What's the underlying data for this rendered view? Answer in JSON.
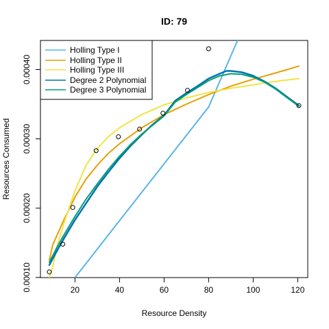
{
  "chart_data": {
    "type": "scatter",
    "title": "ID: 79",
    "xlabel": "Resource Density",
    "ylabel": "Resources Consumed",
    "xlim": [
      4.5,
      124.5
    ],
    "ylim": [
      9.98e-05,
      0.000442
    ],
    "x_ticks": [
      20,
      40,
      60,
      80,
      100,
      120
    ],
    "y_ticks": [
      0.0001,
      0.0002,
      0.0003,
      0.0004
    ],
    "x_tick_labels": [
      "20",
      "40",
      "60",
      "80",
      "100",
      "120"
    ],
    "y_tick_labels": [
      "0.00010",
      "0.00020",
      "0.00030",
      "0.00040"
    ],
    "grid": false,
    "legend_position": "top-left",
    "points": [
      {
        "x": 8.5,
        "y": 0.000108
      },
      {
        "x": 14.5,
        "y": 0.000148
      },
      {
        "x": 19.0,
        "y": 0.000201
      },
      {
        "x": 29.5,
        "y": 0.000283
      },
      {
        "x": 39.5,
        "y": 0.000303
      },
      {
        "x": 49.0,
        "y": 0.000314
      },
      {
        "x": 59.5,
        "y": 0.000337
      },
      {
        "x": 70.5,
        "y": 0.00037
      },
      {
        "x": 80.0,
        "y": 0.00043
      },
      {
        "x": 120.5,
        "y": 0.000348
      }
    ],
    "series": [
      {
        "name": "Holling Type I",
        "color": "#56B4E9",
        "x": [
          20,
          40,
          60,
          80,
          93
        ],
        "y": [
          9.98e-05,
          0.000182,
          0.000264,
          0.000346,
          0.000442
        ]
      },
      {
        "name": "Holling Type II",
        "color": "#E69F00",
        "x": [
          8.5,
          10,
          15,
          20,
          25,
          30,
          35,
          40,
          50,
          60,
          70,
          80,
          90,
          100,
          110,
          120.5
        ],
        "y": [
          0.000125,
          0.000147,
          0.000183,
          0.000216,
          0.000242,
          0.000262,
          0.000279,
          0.000293,
          0.000316,
          0.000335,
          0.00035,
          0.000364,
          0.000376,
          0.000386,
          0.000395,
          0.000405
        ]
      },
      {
        "name": "Holling Type III",
        "color": "#F0E442",
        "x": [
          8.5,
          10,
          12,
          15,
          20,
          25,
          30,
          35,
          40,
          50,
          60,
          70,
          80,
          90,
          100,
          110,
          120.5
        ],
        "y": [
          9.98e-05,
          0.000115,
          0.000145,
          0.000178,
          0.000225,
          0.000262,
          0.000286,
          0.000303,
          0.000316,
          0.000335,
          0.000349,
          0.000359,
          0.000367,
          0.000373,
          0.000378,
          0.000383,
          0.000387
        ]
      },
      {
        "name": "Degree 2 Polynomial",
        "color": "#0072B2",
        "x": [
          8.5,
          12,
          15,
          20,
          25,
          30,
          35,
          40,
          45,
          50,
          55,
          60,
          65,
          70,
          75,
          80,
          85,
          88,
          90,
          95,
          100,
          105,
          110,
          115,
          120.5
        ],
        "y": [
          0.000118,
          0.000139,
          0.000156,
          0.000183,
          0.000207,
          0.000231,
          0.000252,
          0.000272,
          0.00029,
          0.000306,
          0.000321,
          0.000334,
          0.000355,
          0.000366,
          0.000376,
          0.000387,
          0.000394,
          0.000398,
          0.000398,
          0.000396,
          0.000391,
          0.000383,
          0.000373,
          0.000361,
          0.000348
        ]
      },
      {
        "name": "Degree 3 Polynomial",
        "color": "#009E73",
        "x": [
          8.5,
          12,
          15,
          20,
          25,
          30,
          35,
          40,
          45,
          50,
          55,
          60,
          65,
          70,
          75,
          80,
          85,
          90,
          95,
          100,
          105,
          110,
          115,
          120.5
        ],
        "y": [
          0.000122,
          0.000144,
          0.000161,
          0.000188,
          0.000213,
          0.000235,
          0.000256,
          0.000275,
          0.000292,
          0.000307,
          0.00032,
          0.000333,
          0.000353,
          0.000364,
          0.000374,
          0.000384,
          0.000391,
          0.000394,
          0.000393,
          0.000389,
          0.000382,
          0.000372,
          0.00036,
          0.000347
        ]
      }
    ]
  }
}
